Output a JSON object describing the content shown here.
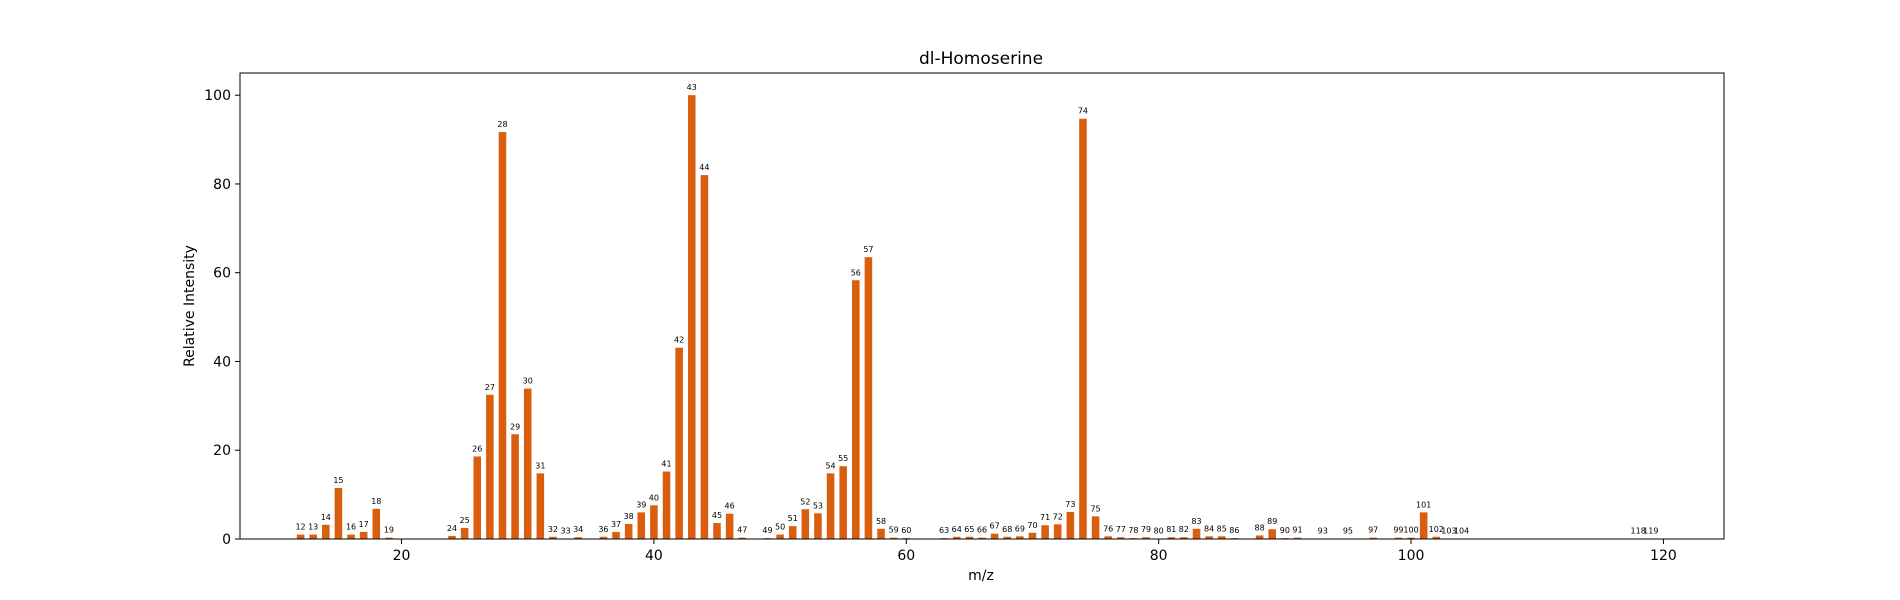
{
  "chart_data": {
    "type": "bar",
    "title": "dl-Homoserine",
    "xlabel": "m/z",
    "ylabel": "Relative Intensity",
    "xlim": [
      7.2,
      124.8
    ],
    "ylim": [
      0,
      105
    ],
    "xticks": [
      20,
      40,
      60,
      80,
      100,
      120
    ],
    "yticks": [
      0,
      20,
      40,
      60,
      80,
      100
    ],
    "bar_color": "#d95f0e",
    "grid": false,
    "points": [
      {
        "x": 12,
        "y": 1.0
      },
      {
        "x": 13,
        "y": 1.0
      },
      {
        "x": 14,
        "y": 3.2
      },
      {
        "x": 15,
        "y": 11.5
      },
      {
        "x": 16,
        "y": 1.0
      },
      {
        "x": 17,
        "y": 1.6
      },
      {
        "x": 18,
        "y": 6.8
      },
      {
        "x": 19,
        "y": 0.3
      },
      {
        "x": 24,
        "y": 0.7
      },
      {
        "x": 25,
        "y": 2.5
      },
      {
        "x": 26,
        "y": 18.6
      },
      {
        "x": 27,
        "y": 32.5
      },
      {
        "x": 28,
        "y": 91.7
      },
      {
        "x": 29,
        "y": 23.6
      },
      {
        "x": 30,
        "y": 33.9
      },
      {
        "x": 31,
        "y": 14.8
      },
      {
        "x": 32,
        "y": 0.5
      },
      {
        "x": 33,
        "y": 0.1
      },
      {
        "x": 34,
        "y": 0.4
      },
      {
        "x": 36,
        "y": 0.5
      },
      {
        "x": 37,
        "y": 1.6
      },
      {
        "x": 38,
        "y": 3.4
      },
      {
        "x": 39,
        "y": 6.0
      },
      {
        "x": 40,
        "y": 7.6
      },
      {
        "x": 41,
        "y": 15.2
      },
      {
        "x": 42,
        "y": 43.1
      },
      {
        "x": 43,
        "y": 100.0
      },
      {
        "x": 44,
        "y": 82.0
      },
      {
        "x": 45,
        "y": 3.6
      },
      {
        "x": 46,
        "y": 5.7
      },
      {
        "x": 47,
        "y": 0.3
      },
      {
        "x": 49,
        "y": 0.2
      },
      {
        "x": 50,
        "y": 1.0
      },
      {
        "x": 51,
        "y": 2.9
      },
      {
        "x": 52,
        "y": 6.7
      },
      {
        "x": 53,
        "y": 5.8
      },
      {
        "x": 54,
        "y": 14.8
      },
      {
        "x": 55,
        "y": 16.4
      },
      {
        "x": 56,
        "y": 58.3
      },
      {
        "x": 57,
        "y": 63.5
      },
      {
        "x": 58,
        "y": 2.3
      },
      {
        "x": 59,
        "y": 0.3
      },
      {
        "x": 60,
        "y": 0.2
      },
      {
        "x": 63,
        "y": 0.2
      },
      {
        "x": 64,
        "y": 0.5
      },
      {
        "x": 65,
        "y": 0.5
      },
      {
        "x": 66,
        "y": 0.3
      },
      {
        "x": 67,
        "y": 1.2
      },
      {
        "x": 68,
        "y": 0.5
      },
      {
        "x": 69,
        "y": 0.6
      },
      {
        "x": 70,
        "y": 1.4
      },
      {
        "x": 71,
        "y": 3.1
      },
      {
        "x": 72,
        "y": 3.3
      },
      {
        "x": 73,
        "y": 6.1
      },
      {
        "x": 74,
        "y": 94.7
      },
      {
        "x": 75,
        "y": 5.1
      },
      {
        "x": 76,
        "y": 0.6
      },
      {
        "x": 77,
        "y": 0.4
      },
      {
        "x": 78,
        "y": 0.2
      },
      {
        "x": 79,
        "y": 0.4
      },
      {
        "x": 80,
        "y": 0.1
      },
      {
        "x": 81,
        "y": 0.4
      },
      {
        "x": 82,
        "y": 0.4
      },
      {
        "x": 83,
        "y": 2.3
      },
      {
        "x": 84,
        "y": 0.6
      },
      {
        "x": 85,
        "y": 0.6
      },
      {
        "x": 86,
        "y": 0.2
      },
      {
        "x": 88,
        "y": 0.8
      },
      {
        "x": 89,
        "y": 2.2
      },
      {
        "x": 90,
        "y": 0.2
      },
      {
        "x": 91,
        "y": 0.3
      },
      {
        "x": 93,
        "y": 0.1
      },
      {
        "x": 95,
        "y": 0.1
      },
      {
        "x": 97,
        "y": 0.3
      },
      {
        "x": 99,
        "y": 0.3
      },
      {
        "x": 100,
        "y": 0.3
      },
      {
        "x": 101,
        "y": 6.0
      },
      {
        "x": 102,
        "y": 0.5
      },
      {
        "x": 103,
        "y": 0.1
      },
      {
        "x": 104,
        "y": 0.1
      },
      {
        "x": 118,
        "y": 0.1
      },
      {
        "x": 119,
        "y": 0.1
      }
    ]
  }
}
